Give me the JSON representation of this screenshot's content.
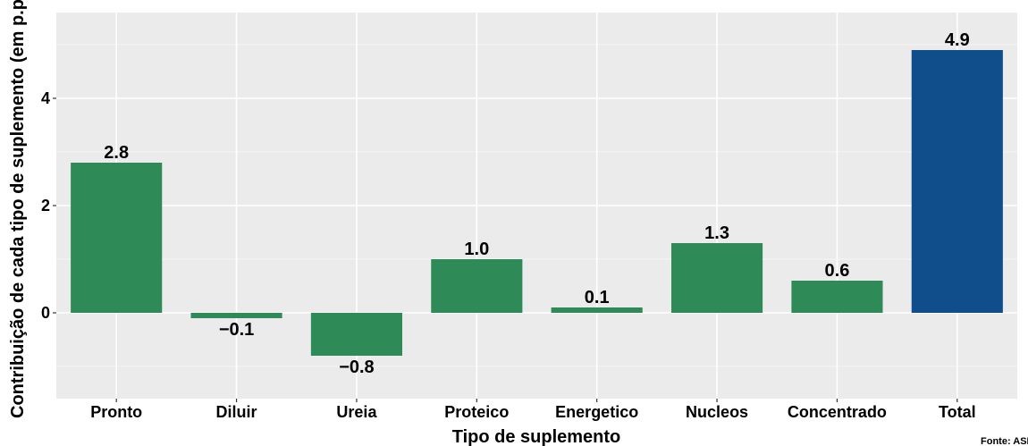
{
  "chart_data": {
    "type": "bar",
    "categories": [
      "Pronto",
      "Diluir",
      "Ureia",
      "Proteico",
      "Energetico",
      "Nucleos",
      "Concentrado",
      "Total"
    ],
    "values": [
      2.8,
      -0.1,
      -0.8,
      1.0,
      0.1,
      1.3,
      0.6,
      4.9
    ],
    "value_labels": [
      "2.8",
      "−0.1",
      "−0.8",
      "1.0",
      "0.1",
      "1.3",
      "0.6",
      "4.9"
    ],
    "xlabel": "Tipo de suplemento",
    "ylabel": "Contribuição de cada tipo de suplemento (em p.p.)",
    "ylim": [
      -1.6,
      5.6
    ],
    "yticks": [
      0,
      2,
      4
    ],
    "ytick_labels": [
      "0",
      "2",
      "4"
    ],
    "grid": true,
    "colors": {
      "positive": "#2e8b57",
      "negative": "#2e8b57",
      "total": "#104e8b",
      "panel": "#ebebeb",
      "grid_major": "#ffffff"
    },
    "source": "Fonte: ASBRAM"
  }
}
